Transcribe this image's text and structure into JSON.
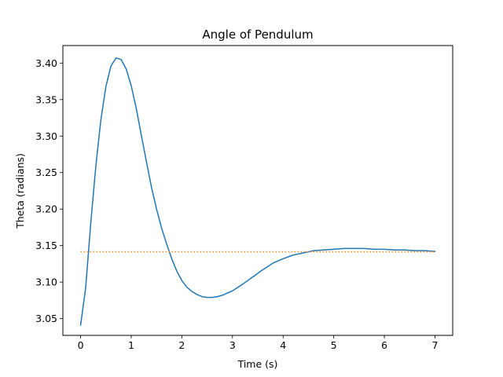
{
  "chart_data": {
    "type": "line",
    "title": "Angle of Pendulum",
    "xlabel": "Time (s)",
    "ylabel": "Theta (radians)",
    "xlim": [
      -0.35,
      7.35
    ],
    "ylim": [
      3.027,
      3.424
    ],
    "x_ticks": [
      0,
      1,
      2,
      3,
      4,
      5,
      6,
      7
    ],
    "x_tick_labels": [
      "0",
      "1",
      "2",
      "3",
      "4",
      "5",
      "6",
      "7"
    ],
    "y_ticks": [
      3.05,
      3.1,
      3.15,
      3.2,
      3.25,
      3.3,
      3.35,
      3.4
    ],
    "y_tick_labels": [
      "3.05",
      "3.10",
      "3.15",
      "3.20",
      "3.25",
      "3.30",
      "3.35",
      "3.40"
    ],
    "grid": false,
    "series": [
      {
        "color": "#1f77b4",
        "style": "solid",
        "x": [
          0,
          0.1,
          0.2,
          0.3,
          0.4,
          0.5,
          0.6,
          0.7,
          0.8,
          0.9,
          1.0,
          1.1,
          1.2,
          1.3,
          1.4,
          1.5,
          1.6,
          1.7,
          1.8,
          1.9,
          2.0,
          2.1,
          2.2,
          2.3,
          2.4,
          2.5,
          2.6,
          2.7,
          2.8,
          2.9,
          3.0,
          3.2,
          3.4,
          3.6,
          3.8,
          4.0,
          4.2,
          4.4,
          4.6,
          4.8,
          5.0,
          5.2,
          5.4,
          5.6,
          5.8,
          6.0,
          6.2,
          6.4,
          6.6,
          6.8,
          7.0
        ],
        "y": [
          3.041,
          3.092,
          3.18,
          3.258,
          3.322,
          3.368,
          3.396,
          3.407,
          3.405,
          3.392,
          3.369,
          3.338,
          3.301,
          3.265,
          3.23,
          3.2,
          3.174,
          3.152,
          3.132,
          3.115,
          3.102,
          3.093,
          3.087,
          3.083,
          3.08,
          3.079,
          3.079,
          3.08,
          3.082,
          3.085,
          3.088,
          3.097,
          3.107,
          3.117,
          3.126,
          3.132,
          3.137,
          3.14,
          3.143,
          3.144,
          3.145,
          3.146,
          3.146,
          3.146,
          3.145,
          3.145,
          3.144,
          3.144,
          3.143,
          3.143,
          3.142
        ]
      },
      {
        "color": "#ff7f0e",
        "style": "dotted",
        "x": [
          0,
          7
        ],
        "y": [
          3.1416,
          3.1416
        ]
      }
    ]
  }
}
